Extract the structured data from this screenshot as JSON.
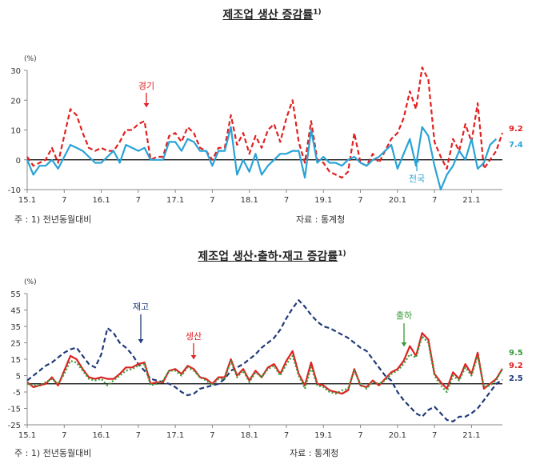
{
  "chart1": {
    "title": "제조업 생산 증감률",
    "title_sup": "1)",
    "unit": "(%)",
    "note": "주 : 1) 전년동월대비",
    "source": "자료 : 통계청",
    "annotations": {
      "gyeonggi": "경기",
      "national": "전국"
    },
    "end_labels": {
      "gyeonggi": "9.2",
      "national": "7.4"
    }
  },
  "chart2": {
    "title": "제조업 생산·출하·재고 증감률",
    "title_sup": "1)",
    "unit": "(%)",
    "note": "주 : 1) 전년동월대비",
    "source": "자료 : 통계청",
    "annotations": {
      "inventory": "재고",
      "production": "생산",
      "shipment": "출하"
    },
    "end_labels": {
      "shipment": "9.5",
      "production": "9.2",
      "inventory": "2.5"
    }
  },
  "chart_data": [
    {
      "type": "line",
      "title": "제조업 생산 증감률",
      "x_tick_labels": [
        "15.1",
        "7",
        "16.1",
        "7",
        "17.1",
        "7",
        "18.1",
        "7",
        "19.1",
        "7",
        "20.1",
        "7",
        "21.1"
      ],
      "ylim": [
        -10,
        30
      ],
      "y_ticks": [
        -10,
        0,
        10,
        20,
        30
      ],
      "ylabel": "(%)",
      "grid": false,
      "series": [
        {
          "name": "경기",
          "color": "#e02020",
          "dash": true,
          "values": [
            1,
            -2,
            -1,
            0,
            4,
            -1,
            8,
            17,
            15,
            9,
            4,
            3,
            4,
            3,
            3,
            6,
            10,
            10,
            12,
            13,
            0,
            1,
            1,
            8,
            9,
            6,
            11,
            9,
            4,
            3,
            0,
            4,
            4,
            15,
            5,
            9,
            2,
            8,
            4,
            10,
            12,
            6,
            14,
            20,
            6,
            -1,
            13,
            0,
            -1,
            -4,
            -5,
            -6,
            -4,
            9,
            -1,
            -2,
            2,
            -1,
            3,
            7,
            9,
            14,
            23,
            17,
            31,
            27,
            6,
            1,
            -3,
            7,
            3,
            12,
            6,
            19,
            -3,
            0,
            3,
            9
          ]
        },
        {
          "name": "전국",
          "color": "#29a3d6",
          "dash": false,
          "values": [
            0,
            -5,
            -2,
            -2,
            0,
            -3,
            1,
            5,
            4,
            3,
            1,
            -1,
            -1,
            1,
            3,
            -1,
            5,
            4,
            3,
            4,
            0,
            0,
            0,
            6,
            6,
            3,
            7,
            6,
            3,
            3,
            -2,
            3,
            3,
            11,
            -5,
            0,
            -4,
            2,
            -5,
            -2,
            0,
            2,
            2,
            3,
            3,
            -6,
            10,
            -1,
            1,
            -1,
            -1,
            -2,
            0,
            1,
            -1,
            -2,
            0,
            1,
            3,
            5,
            -3,
            2,
            7,
            -2,
            11,
            8,
            -2,
            -10,
            -5,
            -2,
            3,
            0,
            7,
            -3,
            -1,
            5,
            7
          ]
        }
      ]
    },
    {
      "type": "line",
      "title": "제조업 생산·출하·재고 증감률",
      "x_tick_labels": [
        "15.1",
        "7",
        "16.1",
        "7",
        "17.1",
        "7",
        "18.1",
        "7",
        "19.1",
        "7",
        "20.1",
        "7",
        "21.1"
      ],
      "ylim": [
        -25,
        55
      ],
      "y_ticks": [
        -25,
        -15,
        -5,
        5,
        15,
        25,
        35,
        45,
        55
      ],
      "ylabel": "(%)",
      "grid": false,
      "series": [
        {
          "name": "재고",
          "color": "#1f3a7a",
          "dash": true,
          "values": [
            2,
            5,
            8,
            11,
            13,
            16,
            19,
            21,
            22,
            17,
            12,
            10,
            18,
            34,
            31,
            25,
            22,
            18,
            12,
            8,
            3,
            2,
            1,
            0,
            -2,
            -5,
            -7,
            -6,
            -3,
            -2,
            -1,
            0,
            3,
            8,
            10,
            12,
            15,
            18,
            22,
            25,
            28,
            33,
            40,
            46,
            51,
            47,
            42,
            38,
            35,
            34,
            32,
            30,
            28,
            25,
            22,
            20,
            15,
            10,
            5,
            2,
            -5,
            -10,
            -14,
            -18,
            -20,
            -16,
            -14,
            -18,
            -22,
            -23,
            -20,
            -20,
            -18,
            -15,
            -10,
            -5,
            0,
            2.5
          ]
        },
        {
          "name": "생산",
          "color": "#e02020",
          "dash": false,
          "values": [
            1,
            -2,
            -1,
            0,
            4,
            -1,
            8,
            17,
            15,
            9,
            4,
            3,
            4,
            3,
            3,
            6,
            10,
            10,
            12,
            13,
            0,
            1,
            1,
            8,
            9,
            6,
            11,
            9,
            4,
            3,
            0,
            4,
            4,
            15,
            5,
            9,
            2,
            8,
            4,
            10,
            12,
            6,
            14,
            20,
            6,
            -1,
            13,
            0,
            -1,
            -4,
            -5,
            -6,
            -4,
            9,
            -1,
            -2,
            2,
            -1,
            3,
            7,
            9,
            14,
            23,
            17,
            31,
            27,
            6,
            1,
            -3,
            7,
            3,
            12,
            6,
            19,
            -3,
            0,
            3,
            9.2
          ]
        },
        {
          "name": "출하",
          "color": "#3a9a3a",
          "dash": true,
          "values": [
            0,
            -1,
            -1,
            1,
            3,
            0,
            6,
            14,
            13,
            8,
            3,
            2,
            3,
            -1,
            2,
            5,
            8,
            9,
            11,
            12,
            -1,
            0,
            2,
            8,
            8,
            5,
            10,
            8,
            4,
            2,
            -1,
            3,
            3,
            14,
            4,
            8,
            1,
            7,
            4,
            9,
            11,
            5,
            12,
            17,
            5,
            -3,
            10,
            -1,
            -2,
            -5,
            -6,
            -4,
            -3,
            8,
            0,
            -3,
            1,
            0,
            2,
            6,
            8,
            12,
            18,
            16,
            29,
            25,
            5,
            -1,
            -5,
            5,
            2,
            10,
            5,
            17,
            -2,
            -1,
            2,
            9.5
          ]
        }
      ]
    }
  ]
}
